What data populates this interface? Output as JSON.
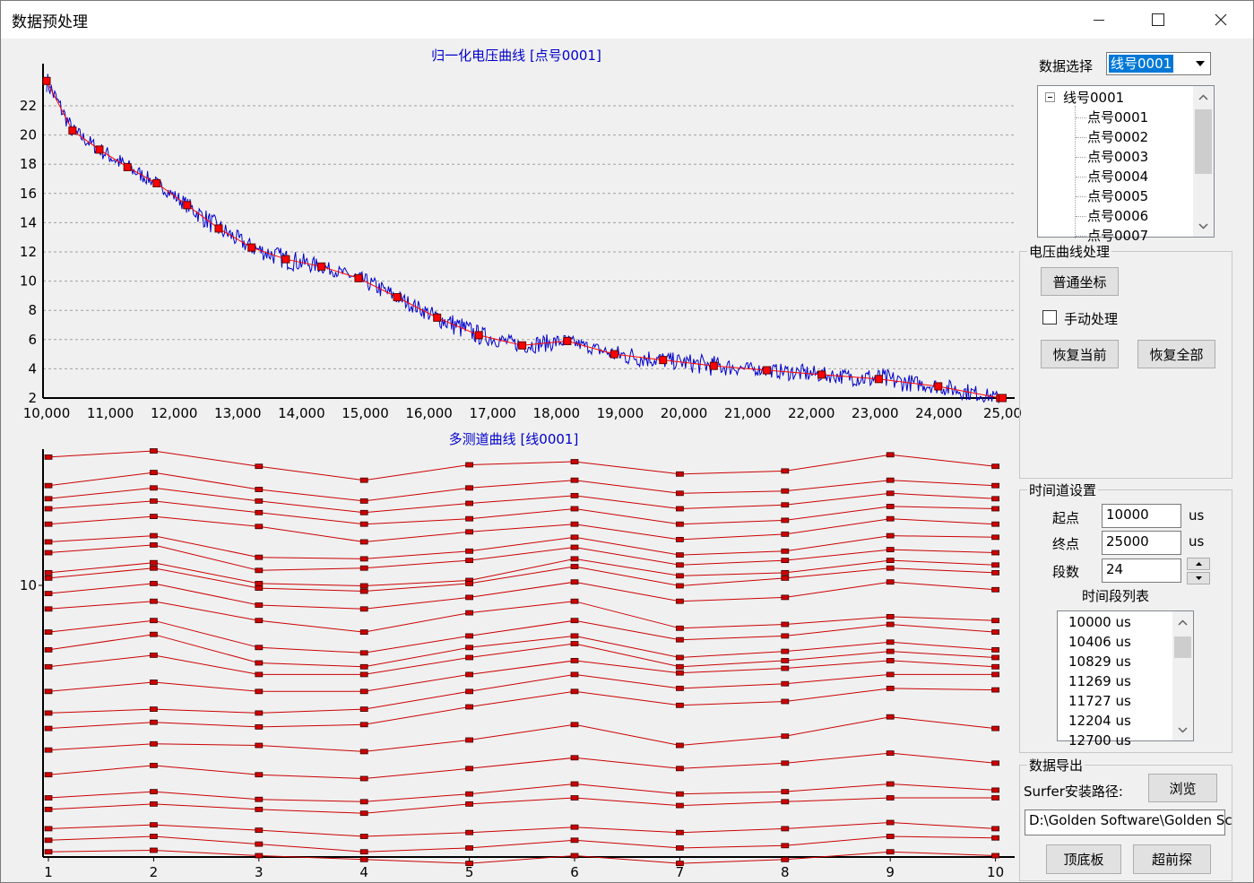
{
  "window": {
    "title": "数据预处理"
  },
  "chart_data": [
    {
      "type": "line",
      "title": "归一化电压曲线 [点号0001]",
      "xlim": [
        10000,
        25000
      ],
      "ylim": [
        2,
        24
      ],
      "x_ticks": [
        "10,000",
        "11,000",
        "12,000",
        "13,000",
        "14,000",
        "15,000",
        "16,000",
        "17,000",
        "18,000",
        "19,000",
        "20,000",
        "21,000",
        "22,000",
        "23,000",
        "24,000",
        "25,00"
      ],
      "y_ticks": [
        "2",
        "4",
        "6",
        "8",
        "10",
        "12",
        "14",
        "16",
        "18",
        "20",
        "22"
      ],
      "series": [
        {
          "color": "#0000cc",
          "style": "noisy-line"
        },
        {
          "color": "#ff0000",
          "style": "smooth-line-with-markers",
          "x": [
            10000,
            10406,
            10829,
            11269,
            11727,
            12204,
            12700,
            13217,
            13754,
            14313,
            14894,
            15500,
            16128,
            16782,
            17463,
            18170,
            18907,
            19673,
            20469,
            21298,
            22161,
            23058,
            23991,
            24962,
            25000
          ],
          "y": [
            23.7,
            20.3,
            19.0,
            17.8,
            16.7,
            15.2,
            13.6,
            12.3,
            11.5,
            11.0,
            10.2,
            8.9,
            7.5,
            6.3,
            5.6,
            5.9,
            5.0,
            4.6,
            4.2,
            3.9,
            3.6,
            3.3,
            2.8,
            2.0,
            2.0
          ]
        }
      ]
    },
    {
      "type": "line",
      "title": "多测道曲线 [线0001]",
      "x_ticks": [
        "1",
        "2",
        "3",
        "4",
        "5",
        "6",
        "7",
        "8",
        "9",
        "10"
      ],
      "y_ticks": [
        "10"
      ],
      "series_color": "#cc0000",
      "series": [
        [
          972,
          980,
          960,
          942,
          962,
          966,
          950,
          954,
          975,
          960
        ],
        [
          935,
          952,
          930,
          915,
          932,
          942,
          925,
          928,
          942,
          935
        ],
        [
          918,
          932,
          915,
          900,
          912,
          922,
          905,
          910,
          925,
          918
        ],
        [
          905,
          915,
          900,
          885,
          892,
          905,
          885,
          890,
          908,
          905
        ],
        [
          885,
          895,
          882,
          862,
          875,
          885,
          865,
          872,
          892,
          885
        ],
        [
          862,
          870,
          842,
          840,
          850,
          868,
          845,
          850,
          870,
          868
        ],
        [
          848,
          858,
          825,
          828,
          838,
          855,
          832,
          838,
          852,
          848
        ],
        [
          822,
          835,
          808,
          805,
          812,
          840,
          818,
          822,
          838,
          832
        ],
        [
          815,
          828,
          802,
          798,
          808,
          830,
          805,
          815,
          828,
          822
        ],
        [
          795,
          808,
          780,
          775,
          790,
          810,
          785,
          790,
          810,
          800
        ],
        [
          775,
          785,
          760,
          745,
          770,
          785,
          750,
          755,
          765,
          760
        ],
        [
          745,
          760,
          725,
          718,
          740,
          760,
          735,
          740,
          755,
          745
        ],
        [
          722,
          742,
          705,
          700,
          725,
          740,
          712,
          720,
          732,
          722
        ],
        [
          700,
          715,
          690,
          690,
          712,
          730,
          700,
          708,
          720,
          712
        ],
        [
          668,
          680,
          668,
          668,
          690,
          708,
          692,
          698,
          708,
          700
        ],
        [
          640,
          645,
          640,
          645,
          668,
          690,
          672,
          678,
          690,
          690
        ],
        [
          620,
          628,
          622,
          625,
          648,
          668,
          650,
          655,
          672,
          670
        ],
        [
          592,
          600,
          598,
          590,
          605,
          625,
          598,
          610,
          635,
          620
        ],
        [
          560,
          572,
          560,
          555,
          568,
          582,
          568,
          575,
          588,
          575
        ],
        [
          530,
          538,
          528,
          525,
          535,
          548,
          535,
          538,
          548,
          540
        ],
        [
          515,
          522,
          515,
          510,
          522,
          530,
          520,
          525,
          530,
          530
        ],
        [
          490,
          495,
          488,
          480,
          485,
          492,
          485,
          490,
          498,
          490
        ],
        [
          475,
          480,
          470,
          460,
          465,
          475,
          465,
          468,
          480,
          478
        ],
        [
          460,
          462,
          455,
          450,
          445,
          455,
          445,
          450,
          460,
          455
        ]
      ]
    }
  ],
  "panel": {
    "data_select_label": "数据选择",
    "data_select_value": "线号0001",
    "tree": {
      "root": "线号0001",
      "items": [
        "点号0001",
        "点号0002",
        "点号0003",
        "点号0004",
        "点号0005",
        "点号0006",
        "点号0007"
      ]
    },
    "curve_group": {
      "title": "电压曲线处理",
      "normal_coords": "普通坐标",
      "manual_label": "手动处理",
      "restore_current": "恢复当前",
      "restore_all": "恢复全部"
    },
    "time_group": {
      "title": "时间道设置",
      "start_label": "起点",
      "start_value": "10000",
      "start_unit": "us",
      "end_label": "终点",
      "end_value": "25000",
      "end_unit": "us",
      "segments_label": "段数",
      "segments_value": "24",
      "list_title": "时间段列表",
      "list": [
        "10000 us",
        "10406 us",
        "10829 us",
        "11269 us",
        "11727 us",
        "12204 us",
        "12700 us"
      ]
    },
    "export_group": {
      "title": "数据导出",
      "surfer_label": "Surfer安装路径:",
      "browse": "浏览",
      "path_value": "D:\\Golden Software\\Golden Sc",
      "top_bottom": "顶底板",
      "advance": "超前探"
    }
  }
}
